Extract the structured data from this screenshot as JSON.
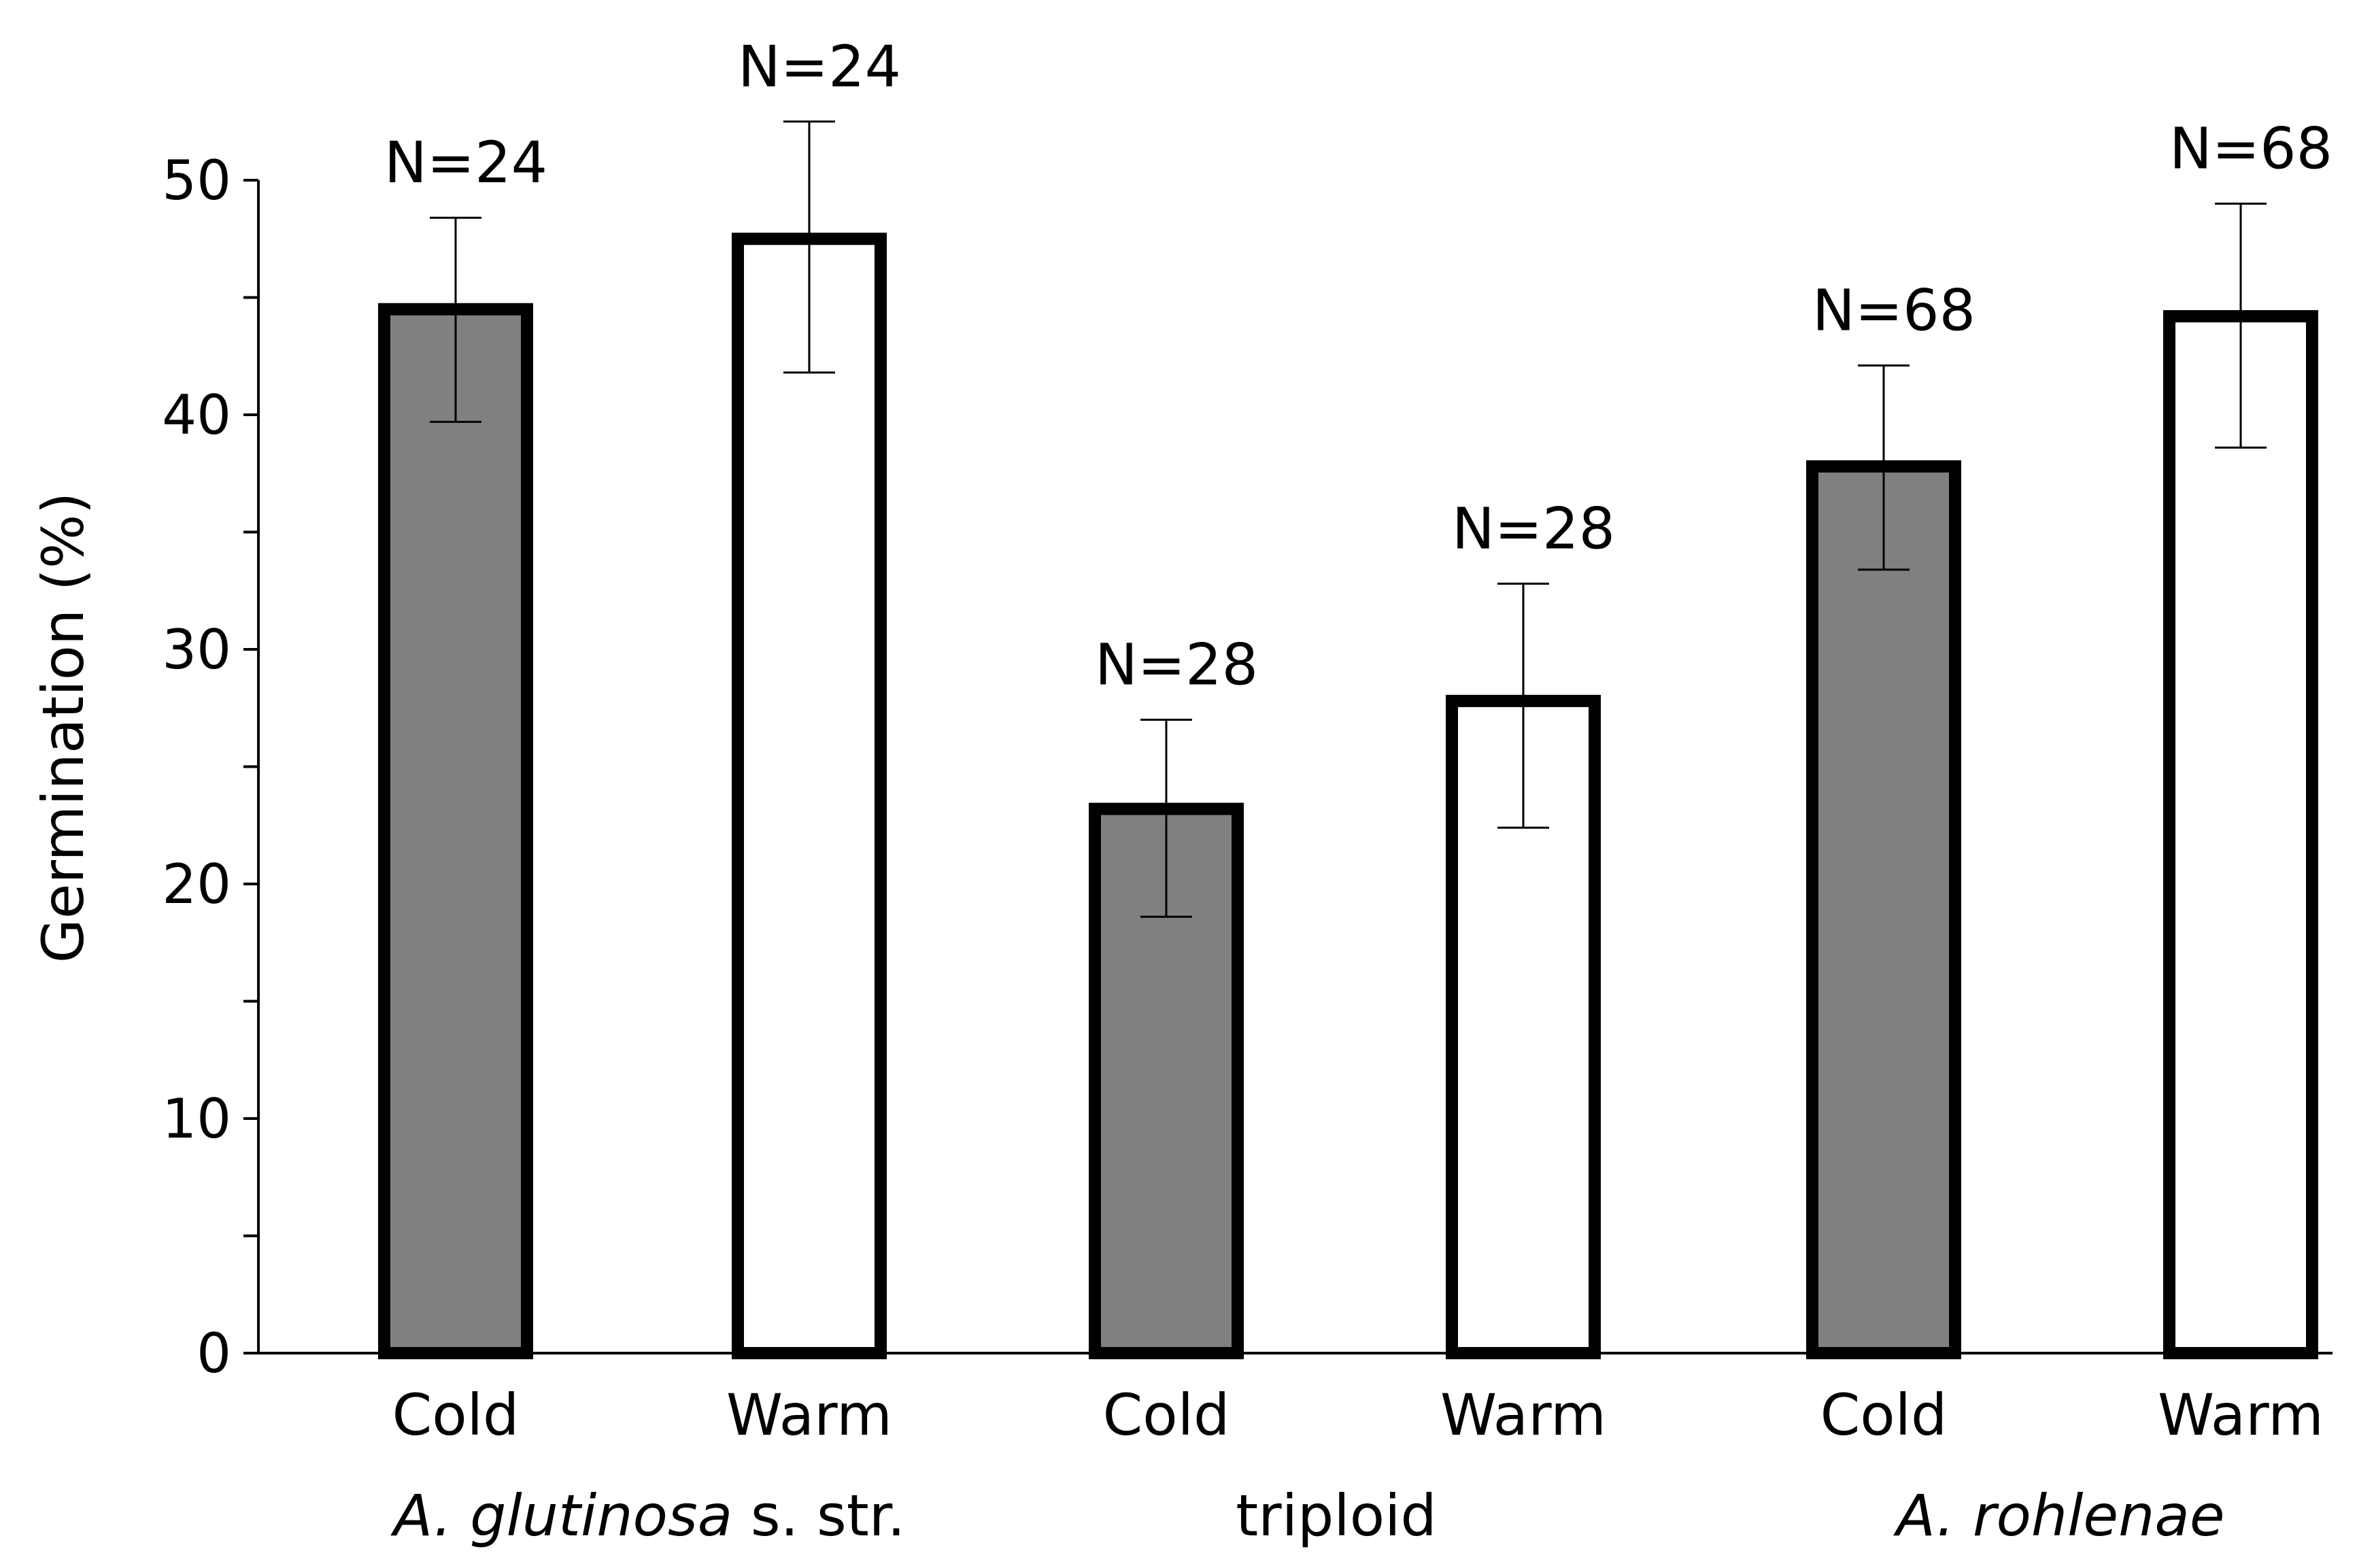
{
  "chart_data": {
    "type": "bar",
    "title": "",
    "xlabel": "",
    "ylabel": "Germination (%)",
    "ylim": [
      0,
      50
    ],
    "yticks": [
      0,
      10,
      20,
      30,
      40,
      50
    ],
    "grid": false,
    "legend": "none",
    "bars": [
      {
        "group": "A. glutinosa s. str.",
        "category": "Cold",
        "value": 44.5,
        "err_low": 39.7,
        "err_high": 48.4,
        "n_label": "N=24",
        "fill": "#808080"
      },
      {
        "group": "A. glutinosa s. str.",
        "category": "Warm",
        "value": 47.5,
        "err_low": 41.8,
        "err_high": 52.5,
        "n_label": "N=24",
        "fill": "#ffffff"
      },
      {
        "group": "triploid",
        "category": "Cold",
        "value": 23.2,
        "err_low": 18.6,
        "err_high": 27.0,
        "n_label": "N=28",
        "fill": "#808080"
      },
      {
        "group": "triploid",
        "category": "Warm",
        "value": 27.8,
        "err_low": 22.4,
        "err_high": 32.8,
        "n_label": "N=28",
        "fill": "#ffffff"
      },
      {
        "group": "A. rohlenae",
        "category": "Cold",
        "value": 37.8,
        "err_low": 33.4,
        "err_high": 42.1,
        "n_label": "N=68",
        "fill": "#808080"
      },
      {
        "group": "A. rohlenae",
        "category": "Warm",
        "value": 44.2,
        "err_low": 38.6,
        "err_high": 49.0,
        "n_label": "N=68",
        "fill": "#ffffff"
      }
    ],
    "groups": [
      {
        "italic": "A. glutinosa",
        "plain": " s. str."
      },
      {
        "italic": "",
        "plain": "triploid"
      },
      {
        "italic": "A. rohlenae",
        "plain": ""
      }
    ]
  }
}
